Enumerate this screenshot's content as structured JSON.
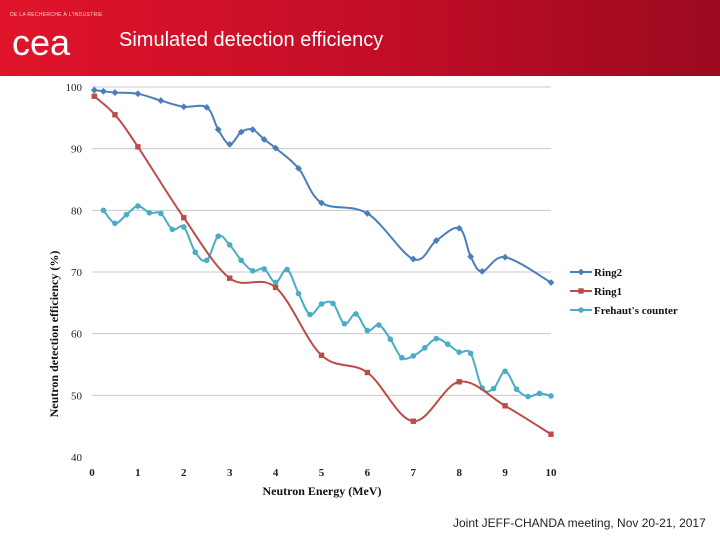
{
  "header": {
    "title": "Simulated detection efficiency",
    "logo_text": "cea",
    "logo_tagline": "DE LA RECHERCHE À L'INDUSTRIE",
    "accent": "#d0102b"
  },
  "footer": {
    "text": "Joint JEFF-CHANDA meeting, Nov 20-21, 2017"
  },
  "chart_data": {
    "type": "line",
    "title": "",
    "xlabel": "Neutron Energy (MeV)",
    "ylabel": "Neutron detection efficiency (%)",
    "xlim": [
      0,
      10
    ],
    "ylim": [
      40,
      100
    ],
    "xticks": [
      0,
      1,
      2,
      3,
      4,
      5,
      6,
      7,
      8,
      9,
      10
    ],
    "yticks": [
      40,
      50,
      60,
      70,
      80,
      90,
      100
    ],
    "grid": "horizontal",
    "legend": "right",
    "series": [
      {
        "name": "Ring2",
        "color": "#4a7ebb",
        "marker": "diamond",
        "x": [
          0.05,
          0.25,
          0.5,
          1.0,
          1.5,
          2.0,
          2.5,
          2.75,
          3.0,
          3.25,
          3.5,
          3.75,
          4.0,
          4.5,
          5.0,
          6.0,
          7.0,
          7.5,
          8.0,
          8.25,
          8.5,
          9.0,
          10.0
        ],
        "y": [
          99.5,
          99.3,
          99.1,
          98.9,
          97.8,
          96.8,
          96.7,
          93.1,
          90.7,
          92.7,
          93.1,
          91.5,
          90.1,
          86.8,
          81.2,
          79.5,
          72.1,
          75.1,
          77.1,
          72.5,
          70.1,
          72.4,
          68.3
        ]
      },
      {
        "name": "Ring1",
        "color": "#be4b48",
        "marker": "square",
        "x": [
          0.05,
          0.5,
          1.0,
          2.0,
          3.0,
          4.0,
          5.0,
          6.0,
          7.0,
          8.0,
          9.0,
          10.0
        ],
        "y": [
          98.5,
          95.5,
          90.3,
          78.8,
          69.0,
          67.5,
          56.5,
          53.7,
          45.8,
          52.2,
          48.3,
          43.7
        ]
      },
      {
        "name": "Frehaut's counter",
        "color": "#4bacc6",
        "marker": "circle",
        "x": [
          0.25,
          0.5,
          0.75,
          1.0,
          1.25,
          1.5,
          1.75,
          2.0,
          2.25,
          2.5,
          2.75,
          3.0,
          3.25,
          3.5,
          3.75,
          4.0,
          4.25,
          4.5,
          4.75,
          5.0,
          5.25,
          5.5,
          5.75,
          6.0,
          6.25,
          6.5,
          6.75,
          7.0,
          7.25,
          7.5,
          7.75,
          8.0,
          8.25,
          8.5,
          8.75,
          9.0,
          9.25,
          9.5,
          9.75,
          10.0
        ],
        "y": [
          80.0,
          77.9,
          79.3,
          80.7,
          79.6,
          79.5,
          76.9,
          77.3,
          73.2,
          71.9,
          75.8,
          74.4,
          71.9,
          70.2,
          70.5,
          68.3,
          70.4,
          66.5,
          63.1,
          64.8,
          64.9,
          61.6,
          63.2,
          60.5,
          61.4,
          59.1,
          56.1,
          56.4,
          57.7,
          59.2,
          58.3,
          57.0,
          56.8,
          51.2,
          51.1,
          53.9,
          51.0,
          49.8,
          50.3,
          49.9
        ]
      }
    ]
  }
}
